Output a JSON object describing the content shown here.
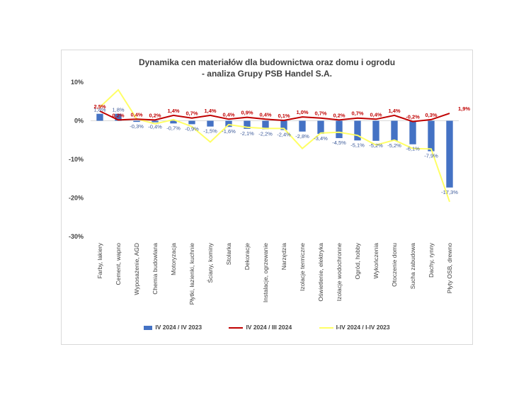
{
  "chart_data": {
    "type": "bar",
    "title_line1": "Dynamika cen materiałów dla budownictwa oraz domu i ogrodu",
    "title_line2": "- analiza Grupy PSB Handel S.A.",
    "categories": [
      "Farby, lakiery",
      "Cement, wapno",
      "Wyposażenie, AGD",
      "Chemia budowlana",
      "Motoryzacja",
      "Płytki, łazienki, kuchnie",
      "Ściany, kominy",
      "Stolarka",
      "Dekoracje",
      "Instalacje, ogrzewanie",
      "Narzędzia",
      "Izolacje termiczne",
      "Oświetlenie, elektryka",
      "Izolacje wodochronne",
      "Ogród, hobby",
      "Wykończenia",
      "Otoczenie domu",
      "Sucha zabudowa",
      "Dachy, rynny",
      "Płyty OSB, drewno"
    ],
    "ylim": [
      -30,
      10
    ],
    "yticks": [
      "10%",
      "0%",
      "-10%",
      "-20%",
      "-30%"
    ],
    "series": [
      {
        "name": "IV 2024 / IV 2023",
        "kind": "bar",
        "color": "#4472c4",
        "values": [
          1.8,
          1.8,
          -0.3,
          -0.4,
          -0.7,
          -0.9,
          -1.5,
          -1.6,
          -2.1,
          -2.2,
          -2.4,
          -2.8,
          -3.4,
          -4.5,
          -5.1,
          -5.2,
          -5.2,
          -6.1,
          -7.9,
          -17.3
        ],
        "labels": [
          "1,8%",
          "1,8%",
          "-0,3%",
          "-0,4%",
          "-0,7%",
          "-0,9%",
          "-1,5%",
          "-1,6%",
          "-2,1%",
          "-2,2%",
          "-2,4%",
          "-2,8%",
          "-3,4%",
          "-4,5%",
          "-5,1%",
          "-5,2%",
          "-5,2%",
          "-6,1%",
          "-7,9%",
          "-17,3%"
        ]
      },
      {
        "name": "IV 2024 / III 2024",
        "kind": "line",
        "color": "#c00000",
        "values": [
          2.5,
          0.2,
          0.4,
          0.2,
          1.4,
          0.7,
          1.4,
          0.4,
          0.9,
          0.4,
          0.1,
          1.0,
          0.7,
          0.2,
          0.7,
          0.4,
          1.4,
          -0.2,
          0.3,
          1.9
        ],
        "labels": [
          "2,5%",
          "0,2%",
          "0,4%",
          "0,2%",
          "1,4%",
          "0,7%",
          "1,4%",
          "0,4%",
          "0,9%",
          "0,4%",
          "0,1%",
          "1,0%",
          "0,7%",
          "0,2%",
          "0,7%",
          "0,4%",
          "1,4%",
          "-0,2%",
          "0,3%",
          "1,9%"
        ]
      },
      {
        "name": "I-IV 2024 / I-IV 2023",
        "kind": "line",
        "color": "#ffff66",
        "values": [
          3.5,
          8.0,
          0.5,
          -0.8,
          0.3,
          -1.5,
          -5.5,
          -1.0,
          -1.7,
          -2.0,
          -2.0,
          -7.2,
          -3.2,
          -3.0,
          -3.8,
          -6.3,
          -5.0,
          -7.2,
          -7.3,
          -21.0
        ]
      }
    ]
  }
}
